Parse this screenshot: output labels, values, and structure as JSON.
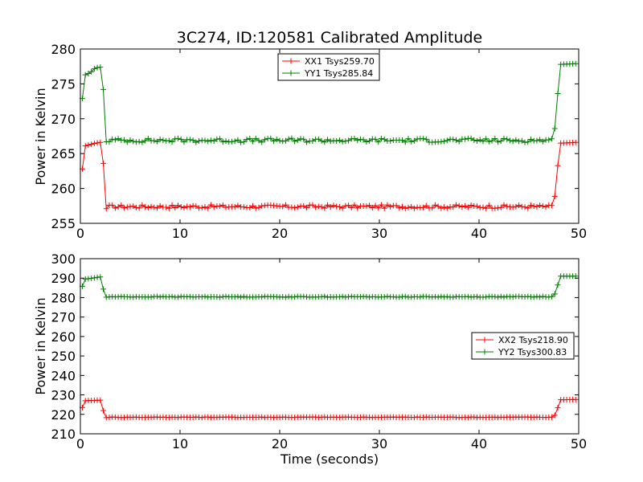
{
  "chart_data": [
    {
      "type": "line",
      "title": "3C274, ID:120581 Calibrated Amplitude",
      "xlabel": "",
      "ylabel": "Power in Kelvin",
      "xlim": [
        0,
        50
      ],
      "ylim": [
        255,
        280
      ],
      "xticks": [
        "0",
        "10",
        "20",
        "30",
        "40",
        "50"
      ],
      "yticks": [
        "255",
        "260",
        "265",
        "270",
        "275",
        "280"
      ],
      "xtick_values": [
        0,
        10,
        20,
        30,
        40,
        50
      ],
      "ytick_values": [
        255,
        260,
        265,
        270,
        275,
        280
      ],
      "grid": false,
      "legend_position": "top-center",
      "series": [
        {
          "name": "XX1 Tsys259.70",
          "color": "#ff0000",
          "keyframes": [
            [
              0.2,
              262.8
            ],
            [
              0.5,
              266.1
            ],
            [
              1.0,
              266.3
            ],
            [
              1.5,
              266.5
            ],
            [
              2.0,
              266.6
            ],
            [
              2.3,
              263.6
            ],
            [
              2.5,
              257.1
            ],
            [
              47.5,
              257.2
            ],
            [
              47.8,
              262.2
            ],
            [
              48.2,
              266.5
            ],
            [
              49.7,
              266.6
            ]
          ],
          "baseline": 257.4,
          "noise": 0.25,
          "marker": "+"
        },
        {
          "name": "YY1 Tsys285.84",
          "color": "#007f00",
          "keyframes": [
            [
              0.2,
              272.9
            ],
            [
              0.5,
              276.3
            ],
            [
              1.0,
              276.6
            ],
            [
              1.5,
              277.3
            ],
            [
              2.0,
              277.4
            ],
            [
              2.3,
              274.2
            ],
            [
              2.5,
              266.7
            ],
            [
              47.5,
              266.8
            ],
            [
              47.8,
              272.2
            ],
            [
              48.2,
              277.8
            ],
            [
              49.7,
              277.9
            ]
          ],
          "baseline": 266.9,
          "noise": 0.3,
          "marker": "+"
        }
      ]
    },
    {
      "type": "line",
      "title": "",
      "xlabel": "Time (seconds)",
      "ylabel": "Power in Kelvin",
      "xlim": [
        0,
        50
      ],
      "ylim": [
        210,
        300
      ],
      "xticks": [
        "0",
        "10",
        "20",
        "30",
        "40",
        "50"
      ],
      "yticks": [
        "210",
        "220",
        "230",
        "240",
        "250",
        "260",
        "270",
        "280",
        "290",
        "300"
      ],
      "xtick_values": [
        0,
        10,
        20,
        30,
        40,
        50
      ],
      "ytick_values": [
        210,
        220,
        230,
        240,
        250,
        260,
        270,
        280,
        290,
        300
      ],
      "grid": false,
      "legend_position": "right",
      "series": [
        {
          "name": "XX2 Tsys218.90",
          "color": "#ff0000",
          "keyframes": [
            [
              0.2,
              223.5
            ],
            [
              0.5,
              227.0
            ],
            [
              2.0,
              227.3
            ],
            [
              2.5,
              218.3
            ],
            [
              47.5,
              218.3
            ],
            [
              47.8,
              222.0
            ],
            [
              48.2,
              227.5
            ],
            [
              49.7,
              227.6
            ]
          ],
          "baseline": 218.5,
          "noise": 0.15,
          "marker": "+"
        },
        {
          "name": "YY2 Tsys300.83",
          "color": "#007f00",
          "keyframes": [
            [
              0.2,
              285.8
            ],
            [
              0.5,
              289.5
            ],
            [
              2.0,
              290.6
            ],
            [
              2.5,
              280.2
            ],
            [
              47.5,
              280.3
            ],
            [
              47.8,
              285.0
            ],
            [
              48.2,
              291.0
            ],
            [
              49.7,
              291.0
            ]
          ],
          "baseline": 280.4,
          "noise": 0.2,
          "marker": "+"
        }
      ]
    }
  ]
}
